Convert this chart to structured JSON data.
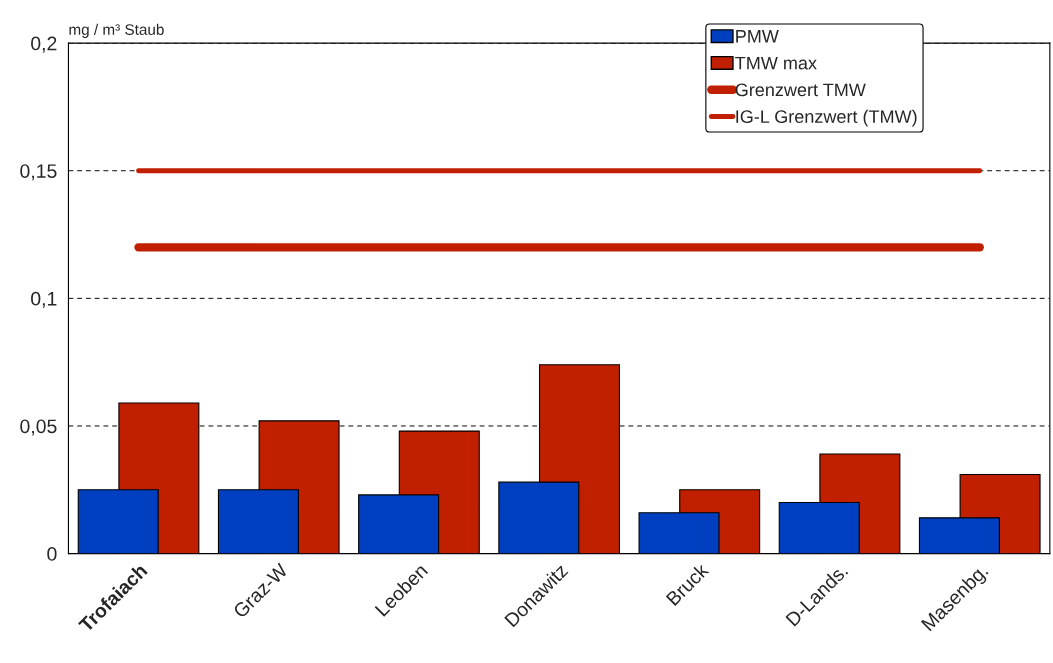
{
  "chart_data": {
    "type": "bar",
    "ylabel": "mg / m³ Staub",
    "categories": [
      "Trofaiach",
      "Graz-W",
      "Leoben",
      "Donawitz",
      "Bruck",
      "D-Lands.",
      "Masenbg."
    ],
    "series": [
      {
        "name": "PMW",
        "color": "#0040c0",
        "values": [
          0.025,
          0.025,
          0.023,
          0.028,
          0.016,
          0.02,
          0.014
        ]
      },
      {
        "name": "TMW max",
        "color": "#c02000",
        "values": [
          0.059,
          0.052,
          0.048,
          0.074,
          0.025,
          0.039,
          0.031
        ]
      },
      {
        "name": "Grenzwert TMW",
        "type": "line",
        "color": "#c02000",
        "values": [
          0.12,
          0.12,
          0.12,
          0.12,
          0.12,
          0.12,
          0.12
        ]
      },
      {
        "name": "IG-L Grenzwert (TMW)",
        "type": "line",
        "color": "#c02000",
        "values": [
          0.15,
          0.15,
          0.15,
          0.15,
          0.15,
          0.15,
          0.15
        ]
      }
    ],
    "ylim": [
      0,
      0.2
    ],
    "yticks": [
      {
        "value": 0,
        "label": "0"
      },
      {
        "value": 0.05,
        "label": "0,05"
      },
      {
        "value": 0.1,
        "label": "0,1"
      },
      {
        "value": 0.15,
        "label": "0,15"
      },
      {
        "value": 0.2,
        "label": "0,2"
      }
    ],
    "grid": "y",
    "legend": "top right"
  }
}
